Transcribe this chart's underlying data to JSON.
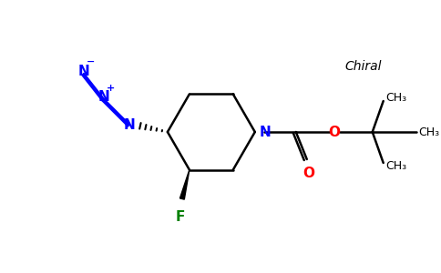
{
  "bg_color": "#ffffff",
  "bond_color": "#000000",
  "n_color": "#0000ff",
  "o_color": "#ff0000",
  "f_color": "#008000",
  "chiral_text": "Chiral",
  "ch3_label": "CH₃",
  "o_label": "O",
  "n_label": "N",
  "f_label": "F",
  "figsize": [
    4.84,
    3.0
  ],
  "dpi": 100
}
